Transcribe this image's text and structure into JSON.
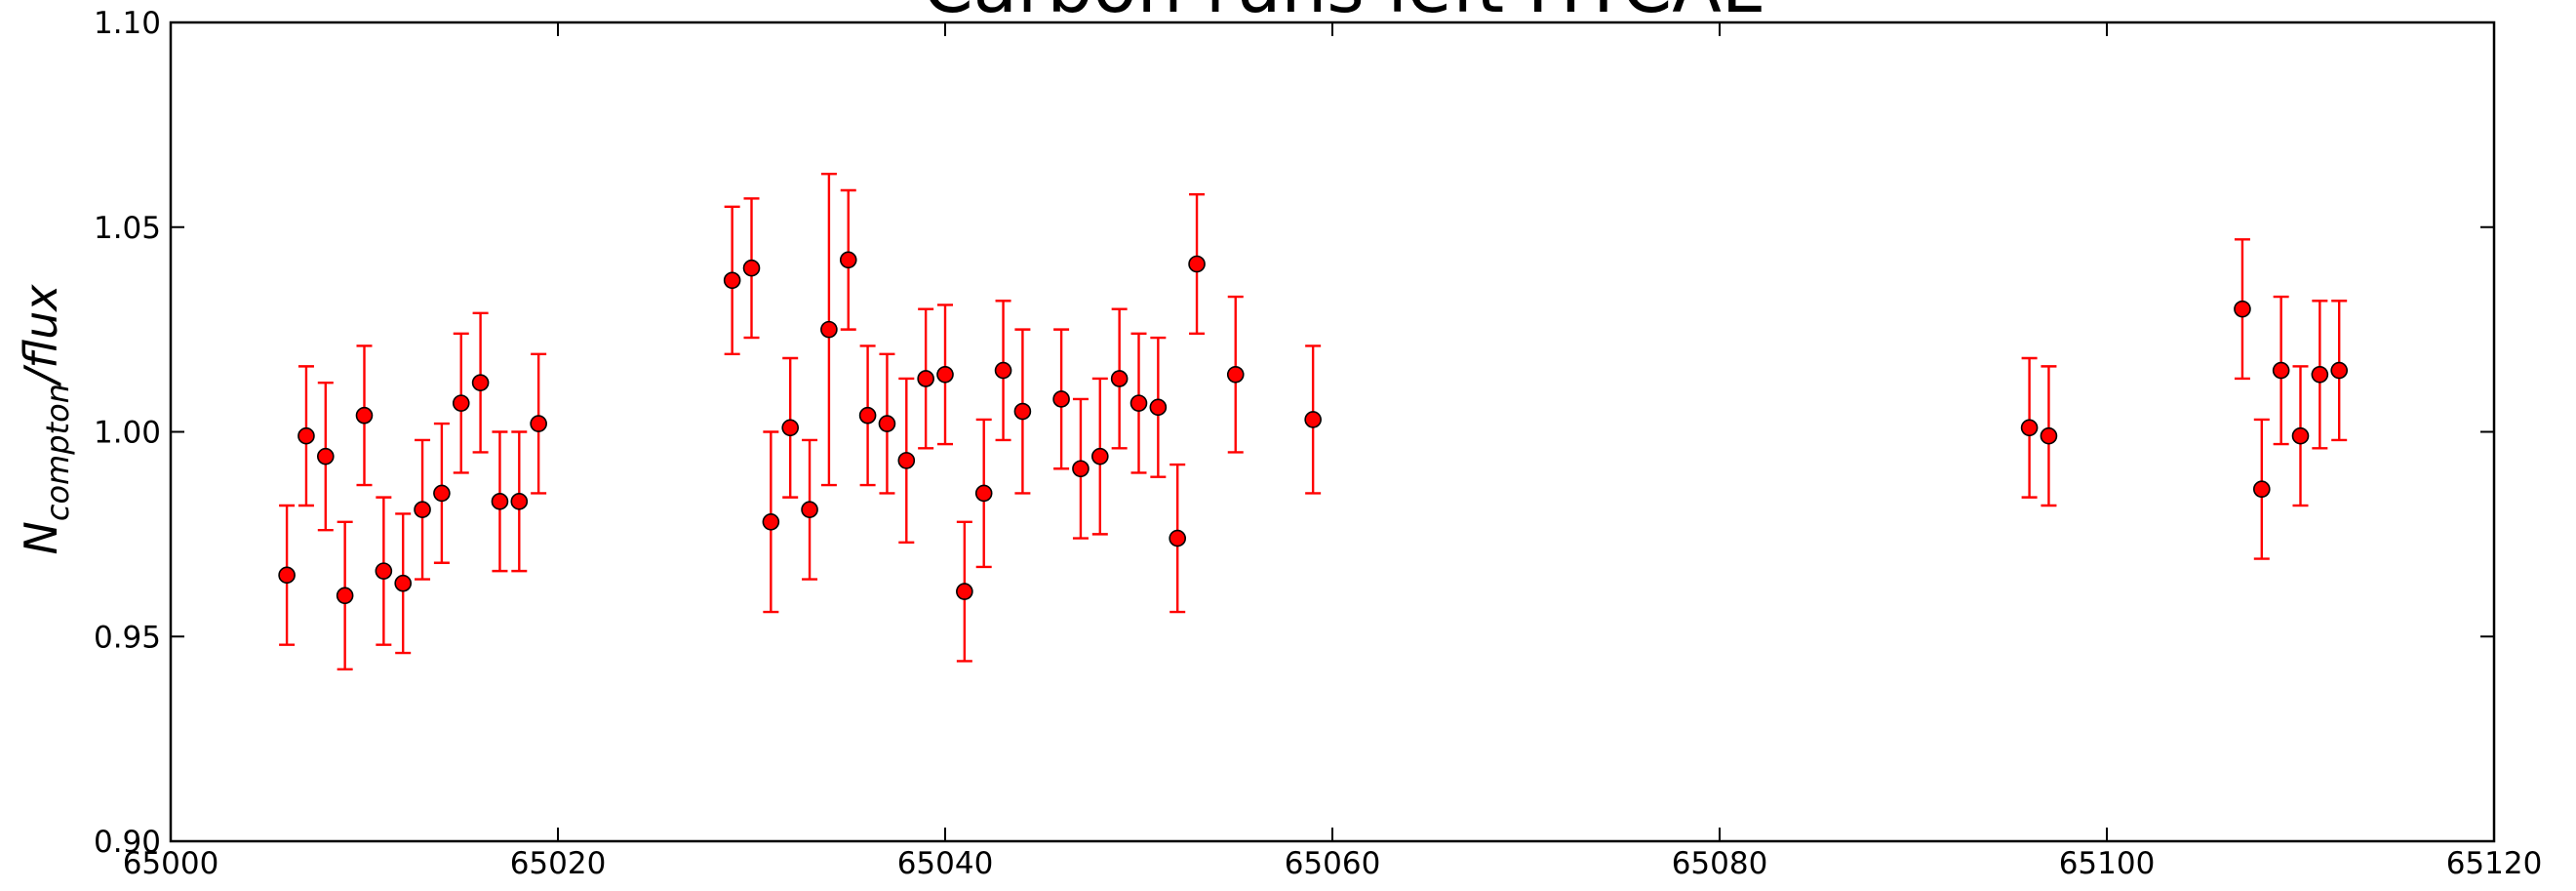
{
  "chart_data": {
    "type": "scatter",
    "title": "Carbon runs left HYCAL",
    "xlabel": "",
    "ylabel": "N_{compton}/flux",
    "ylabel_main": "N",
    "ylabel_sub": "compton",
    "ylabel_rest": "/flux",
    "xlim": [
      65000,
      65120
    ],
    "ylim": [
      0.9,
      1.1
    ],
    "xticks": [
      65000,
      65020,
      65040,
      65060,
      65080,
      65100,
      65120
    ],
    "yticks": [
      0.9,
      0.95,
      1.0,
      1.05,
      1.1
    ],
    "xtick_labels": [
      "65000",
      "65020",
      "65040",
      "65060",
      "65080",
      "65100",
      "65120"
    ],
    "ytick_labels": [
      "0.90",
      "0.95",
      "1.00",
      "1.05",
      "1.10"
    ],
    "grid": false,
    "marker_color": "#ff0000",
    "errorbar_color": "#ff0000",
    "marker_edge_color": "#000000",
    "series": [
      {
        "x": [
          65006,
          65007,
          65008,
          65009,
          65010,
          65011,
          65012,
          65013,
          65014,
          65015,
          65016,
          65017,
          65018,
          65019,
          65029,
          65030,
          65031,
          65032,
          65033,
          65034,
          65035,
          65036,
          65037,
          65038,
          65039,
          65040,
          65041,
          65042,
          65043,
          65044,
          65046,
          65047,
          65048,
          65049,
          65050,
          65051,
          65052,
          65053,
          65055,
          65059,
          65096,
          65097,
          65107,
          65108,
          65109,
          65110,
          65111,
          65112
        ],
        "y": [
          0.965,
          0.999,
          0.994,
          0.96,
          1.004,
          0.966,
          0.963,
          0.981,
          0.985,
          1.007,
          1.012,
          0.983,
          0.983,
          1.002,
          1.037,
          1.04,
          0.978,
          1.001,
          0.981,
          1.025,
          1.042,
          1.004,
          1.002,
          0.993,
          1.013,
          1.014,
          0.961,
          0.985,
          1.015,
          1.005,
          1.008,
          0.991,
          0.994,
          1.013,
          1.007,
          1.006,
          0.974,
          1.041,
          1.014,
          1.003,
          1.001,
          0.999,
          1.03,
          0.986,
          1.015,
          0.999,
          1.014,
          1.015
        ],
        "err": [
          0.017,
          0.017,
          0.018,
          0.018,
          0.017,
          0.018,
          0.017,
          0.017,
          0.017,
          0.017,
          0.017,
          0.017,
          0.017,
          0.017,
          0.018,
          0.017,
          0.022,
          0.017,
          0.017,
          0.038,
          0.017,
          0.017,
          0.017,
          0.02,
          0.017,
          0.017,
          0.017,
          0.018,
          0.017,
          0.02,
          0.017,
          0.017,
          0.019,
          0.017,
          0.017,
          0.017,
          0.018,
          0.017,
          0.019,
          0.018,
          0.017,
          0.017,
          0.017,
          0.017,
          0.018,
          0.017,
          0.018,
          0.017
        ]
      }
    ]
  }
}
